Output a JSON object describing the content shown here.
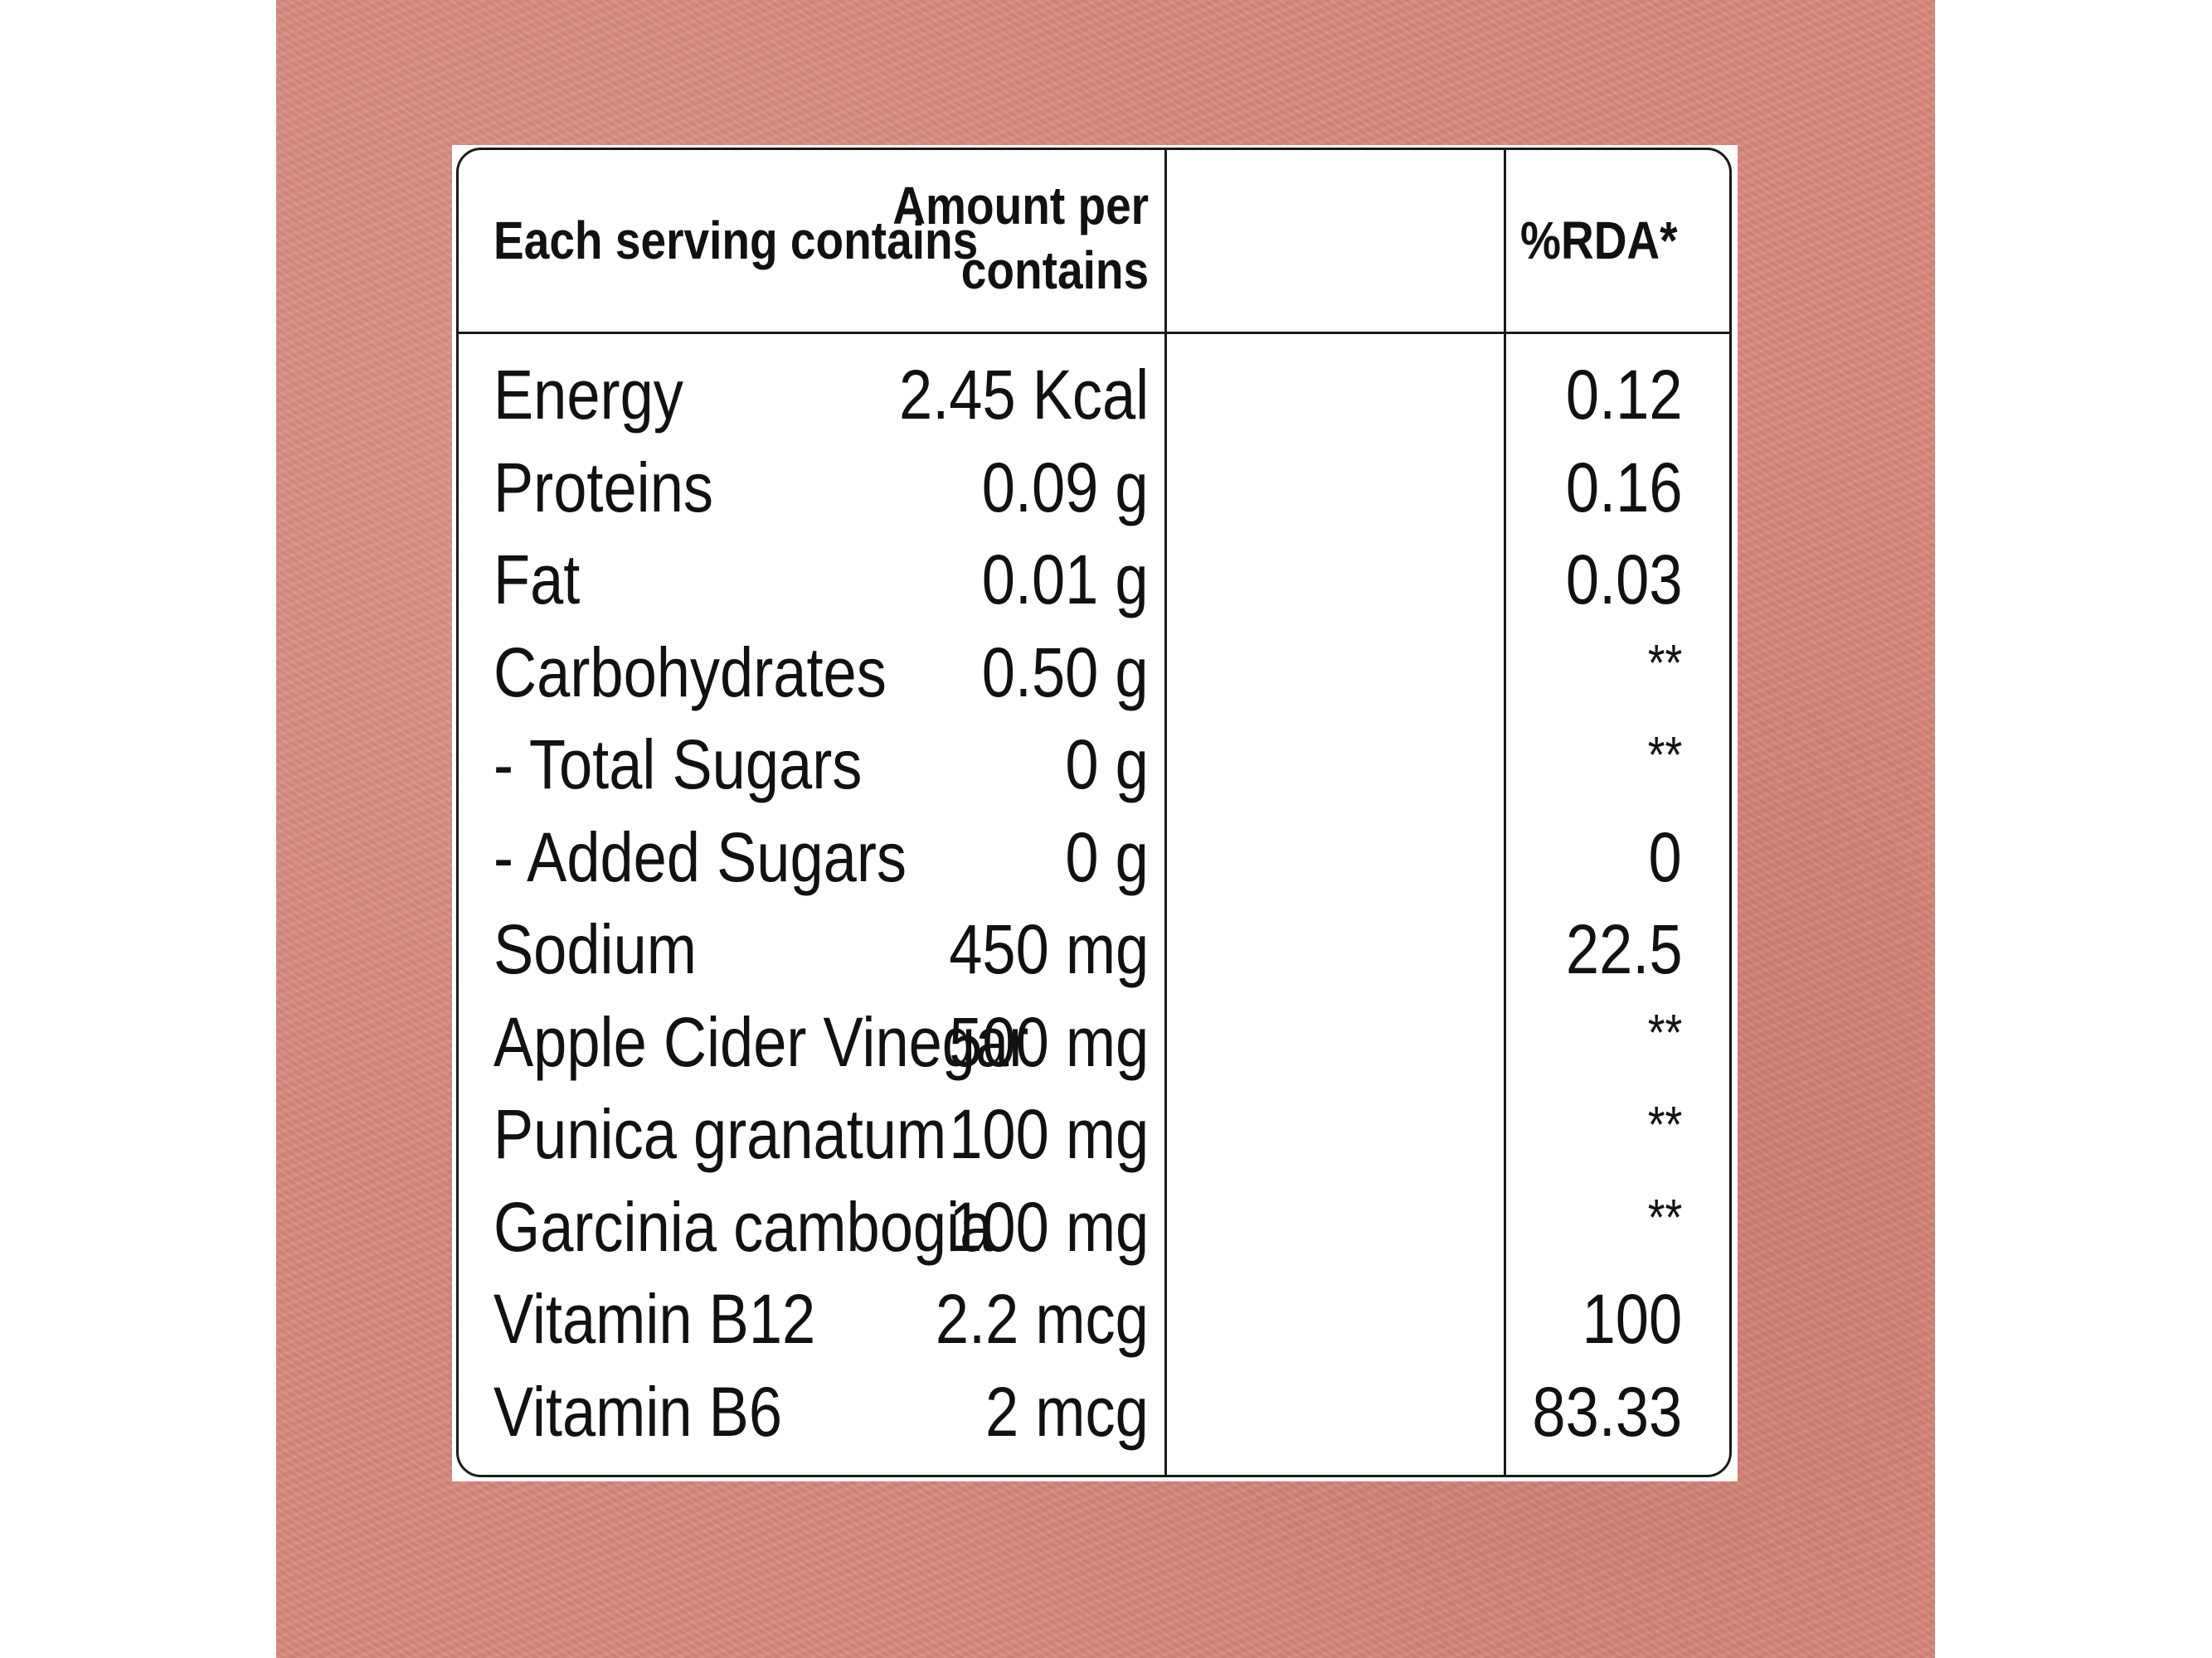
{
  "table": {
    "headers": {
      "nutrient": "Each serving contains",
      "amount_line1": "Amount per",
      "amount_line2": "contains",
      "rda": "%RDA*"
    },
    "rows": [
      {
        "nutrient": "Energy",
        "amount": "2.45 Kcal",
        "rda": "0.12"
      },
      {
        "nutrient": "Proteins",
        "amount": "0.09 g",
        "rda": "0.16"
      },
      {
        "nutrient": "Fat",
        "amount": "0.01 g",
        "rda": "0.03"
      },
      {
        "nutrient": "Carbohydrates",
        "amount": "0.50 g",
        "rda": "**"
      },
      {
        "nutrient": "- Total Sugars",
        "amount": "0 g",
        "rda": "**"
      },
      {
        "nutrient": "- Added Sugars",
        "amount": "0 g",
        "rda": "0"
      },
      {
        "nutrient": "Sodium",
        "amount": "450 mg",
        "rda": "22.5"
      },
      {
        "nutrient": "Apple Cider Vinegar",
        "amount": "500 mg",
        "rda": "**"
      },
      {
        "nutrient": "Punica granatum",
        "amount": "100 mg",
        "rda": "**"
      },
      {
        "nutrient": "Garcinia cambogia",
        "amount": "100 mg",
        "rda": "**"
      },
      {
        "nutrient": "Vitamin B12",
        "amount": "2.2 mcg",
        "rda": "100"
      },
      {
        "nutrient": "Vitamin B6",
        "amount": "2 mcg",
        "rda": "83.33"
      }
    ]
  },
  "colors": {
    "background": "#d8877a",
    "panel": "#ffffff",
    "text": "#111111"
  }
}
